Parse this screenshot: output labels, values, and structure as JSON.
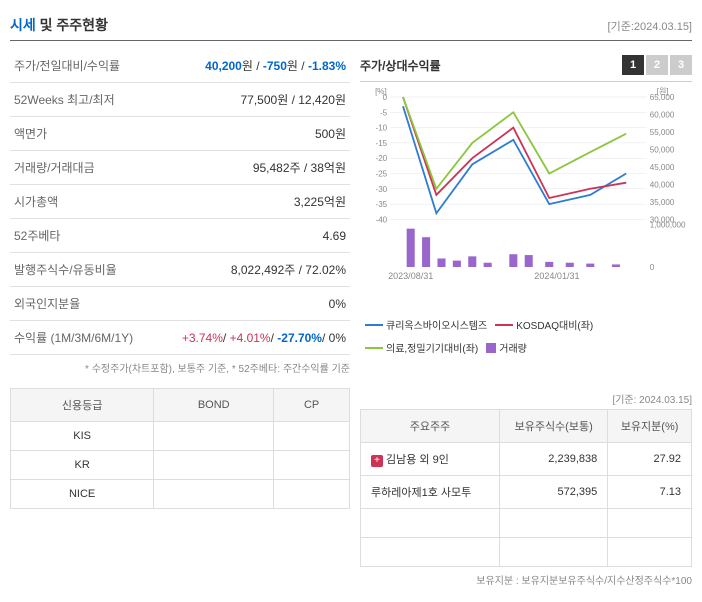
{
  "header": {
    "title_primary": "시세",
    "title_rest": " 및 주주현황",
    "date": "[기준:2024.03.15]"
  },
  "info_rows": [
    {
      "label": "주가/전일대비/수익률",
      "value_html": [
        {
          "text": "40,200",
          "cls": "blue"
        },
        {
          "text": "원 / "
        },
        {
          "text": "-750",
          "cls": "blue"
        },
        {
          "text": "원 / "
        },
        {
          "text": "-1.83%",
          "cls": "blue"
        }
      ]
    },
    {
      "label": "52Weeks 최고/최저",
      "value": "77,500원 / 12,420원"
    },
    {
      "label": "액면가",
      "value": "500원"
    },
    {
      "label": "거래량/거래대금",
      "value": "95,482주 / 38억원"
    },
    {
      "label": "시가총액",
      "value": "3,225억원"
    },
    {
      "label": "52주베타",
      "value": "4.69"
    },
    {
      "label": "발행주식수/유동비율",
      "value": "8,022,492주 / 72.02%"
    },
    {
      "label": "외국인지분율",
      "value": "0%"
    },
    {
      "label": "수익률 (1M/3M/6M/1Y)",
      "value_html": [
        {
          "text": "+3.74%",
          "cls": "red"
        },
        {
          "text": "/ "
        },
        {
          "text": "+4.01%",
          "cls": "red"
        },
        {
          "text": "/ "
        },
        {
          "text": "-27.70%",
          "cls": "blue"
        },
        {
          "text": "/ "
        },
        {
          "text": "0%"
        }
      ]
    }
  ],
  "footnote_left": "* 수정주가(차트포함), 보통주 기준, * 52주베타: 주간수익률 기준",
  "chart": {
    "title": "주가/상대수익률",
    "tabs": [
      "1",
      "2",
      "3"
    ],
    "active_tab": 0,
    "y_left_label": "[%]",
    "y_right_label": "[원]",
    "y_left_ticks": [
      0,
      -5,
      -10,
      -15,
      -20,
      -25,
      -30,
      -35,
      -40
    ],
    "y_right_ticks": [
      65000,
      60000,
      55000,
      50000,
      45000,
      40000,
      35000,
      30000
    ],
    "y_right_vol_ticks": [
      1000000,
      0
    ],
    "x_labels": [
      "2023/08/31",
      "2024/01/31"
    ],
    "x_positions": [
      0.08,
      0.65
    ],
    "series": [
      {
        "name": "큐리옥스바이오시스템즈",
        "color": "#2d7dd2",
        "y_axis": "left",
        "points": [
          [
            0.05,
            -3
          ],
          [
            0.18,
            -38
          ],
          [
            0.32,
            -22
          ],
          [
            0.48,
            -14
          ],
          [
            0.62,
            -35
          ],
          [
            0.78,
            -32
          ],
          [
            0.92,
            -25
          ]
        ]
      },
      {
        "name": "KOSDAQ대비(좌)",
        "color": "#cc3355",
        "y_axis": "left",
        "points": [
          [
            0.05,
            0
          ],
          [
            0.18,
            -32
          ],
          [
            0.32,
            -20
          ],
          [
            0.48,
            -10
          ],
          [
            0.62,
            -33
          ],
          [
            0.78,
            -30
          ],
          [
            0.92,
            -28
          ]
        ]
      },
      {
        "name": "의료,정밀기기대비(좌)",
        "color": "#8cc63f",
        "y_axis": "left",
        "points": [
          [
            0.05,
            0
          ],
          [
            0.18,
            -30
          ],
          [
            0.32,
            -15
          ],
          [
            0.48,
            -5
          ],
          [
            0.62,
            -25
          ],
          [
            0.78,
            -18
          ],
          [
            0.92,
            -12
          ]
        ]
      }
    ],
    "volume": {
      "name": "거래량",
      "color": "#9966cc",
      "bars": [
        [
          0.08,
          900000
        ],
        [
          0.14,
          700000
        ],
        [
          0.2,
          200000
        ],
        [
          0.26,
          150000
        ],
        [
          0.32,
          250000
        ],
        [
          0.38,
          100000
        ],
        [
          0.48,
          300000
        ],
        [
          0.54,
          280000
        ],
        [
          0.62,
          120000
        ],
        [
          0.7,
          100000
        ],
        [
          0.78,
          80000
        ],
        [
          0.88,
          60000
        ]
      ]
    },
    "colors": {
      "grid": "#e5e5e5",
      "bg": "#ffffff",
      "axis_text": "#888888"
    }
  },
  "rating": {
    "headers": [
      "신용등급",
      "BOND",
      "CP"
    ],
    "rows": [
      [
        "KIS",
        "",
        ""
      ],
      [
        "KR",
        "",
        ""
      ],
      [
        "NICE",
        "",
        ""
      ]
    ]
  },
  "shareholders": {
    "date": "[기준: 2024.03.15]",
    "headers": [
      "주요주주",
      "보유주식수(보통)",
      "보유지분(%)"
    ],
    "rows": [
      {
        "expand": true,
        "name": "김남용 외 9인",
        "shares": "2,239,838",
        "pct": "27.92"
      },
      {
        "expand": false,
        "name": "루하레아제1호 사모투",
        "shares": "572,395",
        "pct": "7.13"
      }
    ],
    "footnote": "보유지분 : 보유지분보유주식수/지수산정주식수*100"
  }
}
